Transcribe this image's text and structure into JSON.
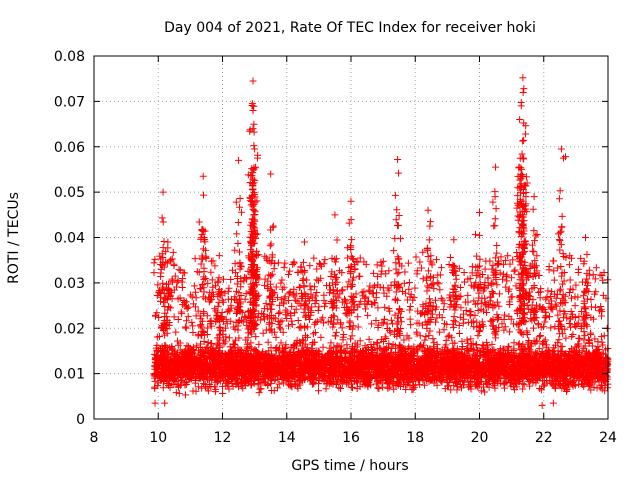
{
  "chart_data": {
    "type": "scatter",
    "title": "Day 004 of 2021, Rate Of TEC Index for receiver hoki",
    "xlabel": "GPS time / hours",
    "ylabel": "ROTI / TECUs",
    "xlim": [
      8,
      24
    ],
    "ylim": [
      0,
      0.08
    ],
    "xticks": [
      8,
      10,
      12,
      14,
      16,
      18,
      20,
      22,
      24
    ],
    "yticks": [
      0,
      0.01,
      0.02,
      0.03,
      0.04,
      0.05,
      0.06,
      0.07,
      0.08
    ],
    "xtick_labels": [
      "8",
      "10",
      "12",
      "14",
      "16",
      "18",
      "20",
      "22",
      "24"
    ],
    "ytick_labels": [
      "0",
      "0.01",
      "0.02",
      "0.03",
      "0.04",
      "0.05",
      "0.06",
      "0.07",
      "0.08"
    ],
    "grid": true,
    "marker": "+",
    "color": "#ff0000",
    "series": [
      {
        "name": "ROTI",
        "x_range": [
          9.85,
          24.0
        ],
        "typical_range": [
          0.005,
          0.02
        ],
        "notable_points": [
          {
            "x": 12.95,
            "y": 0.0745
          },
          {
            "x": 12.93,
            "y": 0.0695
          },
          {
            "x": 12.95,
            "y": 0.068
          },
          {
            "x": 12.95,
            "y": 0.064
          },
          {
            "x": 13.0,
            "y": 0.0595
          },
          {
            "x": 21.35,
            "y": 0.0752
          },
          {
            "x": 21.38,
            "y": 0.0728
          },
          {
            "x": 21.3,
            "y": 0.069
          },
          {
            "x": 21.25,
            "y": 0.066
          },
          {
            "x": 22.55,
            "y": 0.0595
          },
          {
            "x": 17.45,
            "y": 0.0572
          },
          {
            "x": 20.5,
            "y": 0.0555
          },
          {
            "x": 12.5,
            "y": 0.057
          },
          {
            "x": 13.5,
            "y": 0.054
          },
          {
            "x": 11.4,
            "y": 0.0535
          },
          {
            "x": 10.15,
            "y": 0.05
          },
          {
            "x": 16.0,
            "y": 0.048
          },
          {
            "x": 18.4,
            "y": 0.046
          },
          {
            "x": 20.0,
            "y": 0.0455
          },
          {
            "x": 15.5,
            "y": 0.045
          },
          {
            "x": 23.3,
            "y": 0.04
          },
          {
            "x": 14.55,
            "y": 0.039
          },
          {
            "x": 19.2,
            "y": 0.0395
          },
          {
            "x": 21.7,
            "y": 0.049
          },
          {
            "x": 10.3,
            "y": 0.039
          },
          {
            "x": 11.9,
            "y": 0.036
          },
          {
            "x": 9.9,
            "y": 0.0035
          },
          {
            "x": 21.95,
            "y": 0.003
          },
          {
            "x": 22.3,
            "y": 0.0035
          },
          {
            "x": 10.2,
            "y": 0.0035
          }
        ]
      }
    ]
  }
}
